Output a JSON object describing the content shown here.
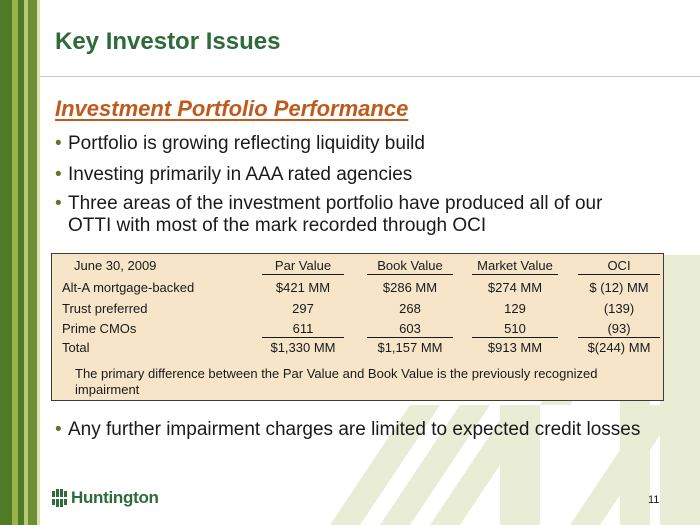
{
  "title": "Key Investor Issues",
  "subheading": "Investment Portfolio Performance",
  "bullets": [
    "Portfolio is growing reflecting liquidity build",
    "Investing primarily in AAA rated agencies",
    "Three areas of the investment portfolio have produced all of our",
    "OTTI with most of the mark recorded through OCI",
    "Any further impairment charges are limited to expected credit losses"
  ],
  "table": {
    "header": [
      "June 30, 2009",
      "Par Value",
      "Book  Value",
      "Market Value",
      "OCI"
    ],
    "rows": [
      [
        "Alt-A mortgage-backed",
        "$421 MM",
        "$286 MM",
        "$274 MM",
        "$   (12) MM"
      ],
      [
        "Trust preferred",
        "297",
        "268",
        "129",
        "(139)"
      ],
      [
        "Prime CMOs",
        "611",
        "603",
        "510",
        "(93)"
      ],
      [
        "Total",
        "$1,330 MM",
        "$1,157 MM",
        "$913 MM",
        "$(244) MM"
      ]
    ],
    "note": "The primary difference between the Par Value and Book Value is the previously recognized impairment"
  },
  "logo": {
    "name": "Huntington",
    "icon": "huntington-logo-icon"
  },
  "page_number": "11",
  "colors": {
    "title": "#2e6a3a",
    "subheading": "#c05a1c",
    "table_bg": "#f6e5c8",
    "bar": "#4f7a27"
  }
}
